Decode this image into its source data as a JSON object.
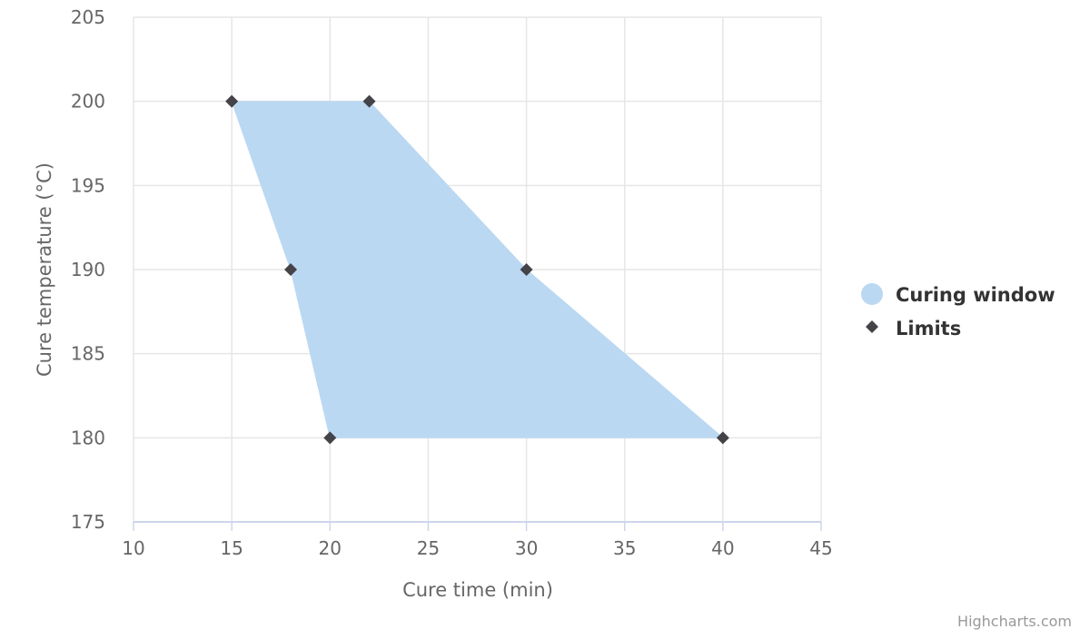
{
  "chart_data": {
    "type": "scatter",
    "title": "",
    "xlabel": "Cure time (min)",
    "ylabel": "Cure temperature (°C)",
    "xlim": [
      10,
      45
    ],
    "ylim": [
      175,
      205
    ],
    "x_ticks": [
      10,
      15,
      20,
      25,
      30,
      35,
      40,
      45
    ],
    "y_ticks": [
      175,
      180,
      185,
      190,
      195,
      200,
      205
    ],
    "grid": true,
    "legend_position": "right",
    "series": [
      {
        "name": "Curing window",
        "kind": "polygon",
        "color": "#bbd8f2",
        "points": [
          [
            15,
            200
          ],
          [
            22,
            200
          ],
          [
            30,
            190
          ],
          [
            40,
            180
          ],
          [
            20,
            180
          ],
          [
            18,
            190
          ]
        ]
      },
      {
        "name": "Limits",
        "kind": "scatter",
        "marker": "diamond",
        "color": "#434348",
        "points": [
          [
            15,
            200
          ],
          [
            22,
            200
          ],
          [
            18,
            190
          ],
          [
            30,
            190
          ],
          [
            20,
            180
          ],
          [
            40,
            180
          ]
        ]
      }
    ]
  },
  "credits": "Highcharts.com"
}
